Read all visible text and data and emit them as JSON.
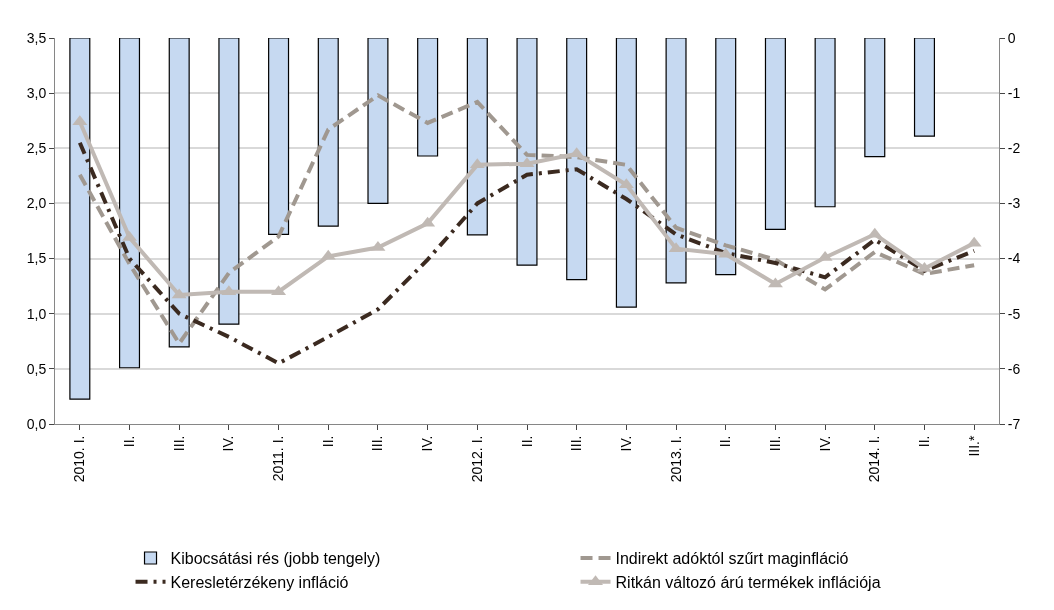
{
  "chart_data": {
    "type": "line",
    "categories": [
      "2010. I.",
      "II.",
      "III.",
      "IV.",
      "2011. I.",
      "II.",
      "III.",
      "IV.",
      "2012. I.",
      "II.",
      "III.",
      "IV.",
      "2013. I.",
      "II.",
      "III.",
      "IV.",
      "2014. I.",
      "II.",
      "III.*"
    ],
    "series": [
      {
        "name": "Kibocsátási rés (jobb tengely)",
        "type": "bar",
        "axis": "y2",
        "color": "#c6d9f1",
        "values": [
          -6.55,
          -5.98,
          -5.6,
          -5.19,
          -3.56,
          -3.41,
          -3.0,
          -2.14,
          -3.57,
          -4.12,
          -4.38,
          -4.88,
          -4.44,
          -4.29,
          -3.47,
          -3.06,
          -2.15,
          -1.78,
          null
        ]
      },
      {
        "name": "Indirekt adóktól szűrt maginfláció",
        "line_style": "dashed",
        "marker": "none",
        "color": "#a09890",
        "values": [
          2.26,
          1.45,
          0.73,
          1.37,
          1.7,
          2.67,
          2.98,
          2.73,
          2.92,
          2.44,
          2.42,
          2.35,
          1.78,
          1.62,
          1.49,
          1.22,
          1.56,
          1.36,
          1.44
        ]
      },
      {
        "name": "Keresletérzékeny infláció",
        "line_style": "dashdot",
        "marker": "none",
        "color": "#3b2a20",
        "values": [
          2.55,
          1.5,
          1.0,
          0.79,
          0.55,
          0.79,
          1.04,
          1.49,
          2.0,
          2.26,
          2.31,
          2.04,
          1.72,
          1.55,
          1.46,
          1.33,
          1.67,
          1.39,
          1.57
        ]
      },
      {
        "name": "Ritkán változó árú termékek inflációja",
        "line_style": "solid",
        "marker": "triangle",
        "color": "#c0b9b4",
        "values": [
          2.74,
          1.69,
          1.17,
          1.2,
          1.2,
          1.52,
          1.6,
          1.82,
          2.35,
          2.36,
          2.45,
          2.17,
          1.59,
          1.54,
          1.27,
          1.51,
          1.72,
          1.41,
          1.64
        ]
      }
    ],
    "ylim": [
      0,
      3.5
    ],
    "yticks": [
      {
        "value": 0,
        "label": "0,0"
      },
      {
        "value": 0.5,
        "label": "0,5"
      },
      {
        "value": 1,
        "label": "1,0"
      },
      {
        "value": 1.5,
        "label": "1,5"
      },
      {
        "value": 2,
        "label": "2,0"
      },
      {
        "value": 2.5,
        "label": "2,5"
      },
      {
        "value": 3,
        "label": "3,0"
      },
      {
        "value": 3.5,
        "label": "3,5"
      }
    ],
    "y2lim": [
      -7,
      0
    ],
    "y2ticks": [
      -7,
      -6,
      -5,
      -4,
      -3,
      -2,
      -1,
      0
    ],
    "grid": "y",
    "legend": "bottom"
  }
}
